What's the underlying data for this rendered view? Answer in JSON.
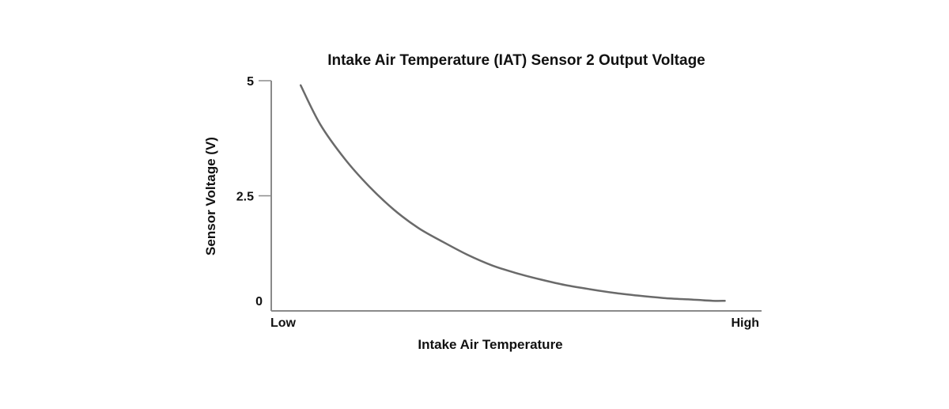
{
  "chart_data": {
    "type": "line",
    "title": "Intake Air Temperature (IAT) Sensor 2 Output Voltage",
    "xlabel": "Intake Air Temperature",
    "ylabel": "Sensor Voltage (V)",
    "x_tick_labels": [
      "Low",
      "High"
    ],
    "y_ticks": [
      0,
      2.5,
      5
    ],
    "y_tick_labels": [
      "0",
      "2.5",
      "5"
    ],
    "ylim": [
      0,
      5
    ],
    "xlim": [
      0,
      1
    ],
    "grid": false,
    "series": [
      {
        "x": [
          0.06,
          0.1,
          0.15,
          0.2,
          0.25,
          0.3,
          0.35,
          0.4,
          0.45,
          0.5,
          0.55,
          0.6,
          0.65,
          0.7,
          0.75,
          0.8,
          0.85,
          0.9,
          0.925
        ],
        "y": [
          4.9,
          4.05,
          3.3,
          2.7,
          2.2,
          1.8,
          1.5,
          1.22,
          0.99,
          0.82,
          0.68,
          0.56,
          0.47,
          0.39,
          0.33,
          0.28,
          0.25,
          0.22,
          0.22
        ]
      }
    ],
    "colors": {
      "curve": "#6a6a6a",
      "axis": "#8a8a8a",
      "text": "#111111"
    }
  }
}
